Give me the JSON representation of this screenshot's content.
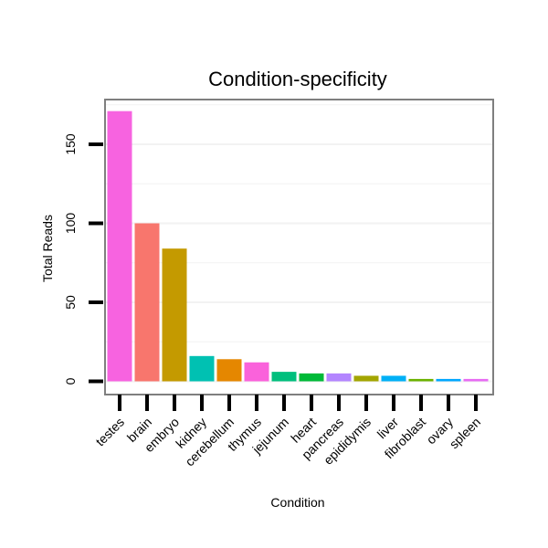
{
  "chart_data": {
    "type": "bar",
    "title": "Condition-specificity",
    "xlabel": "Condition",
    "ylabel": "Total Reads",
    "categories": [
      "testes",
      "brain",
      "embryo",
      "kidney",
      "cerebellum",
      "thymus",
      "jejunum",
      "heart",
      "pancreas",
      "epididymis",
      "liver",
      "fibroblast",
      "ovary",
      "spleen"
    ],
    "values": [
      171,
      100,
      84,
      16,
      14,
      12,
      6,
      5,
      5,
      3.5,
      3.5,
      1.5,
      1.5,
      1.5
    ],
    "colors": [
      "#f763e0",
      "#f8766d",
      "#c49a00",
      "#00c1b2",
      "#e58700",
      "#fa62db",
      "#00bf7d",
      "#00ba38",
      "#b385ff",
      "#a3a500",
      "#00b0f6",
      "#6bb100",
      "#00a7ff",
      "#e76bf3"
    ],
    "yticks": [
      0,
      50,
      100,
      150
    ],
    "ylim": [
      0,
      180
    ],
    "grid": true,
    "legend": "none"
  }
}
